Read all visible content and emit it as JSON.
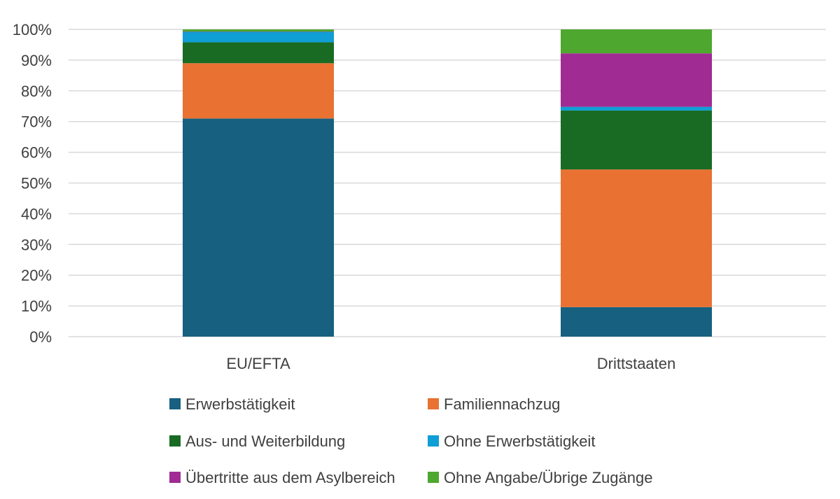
{
  "chart_data": {
    "type": "bar",
    "stacked": true,
    "title": "",
    "xlabel": "",
    "ylabel": "",
    "ylim": [
      0,
      100
    ],
    "y_ticks": [
      "0%",
      "10%",
      "20%",
      "30%",
      "40%",
      "50%",
      "60%",
      "70%",
      "80%",
      "90%",
      "100%"
    ],
    "grid": true,
    "legend_position": "bottom",
    "categories": [
      "EU/EFTA",
      "Drittstaaten"
    ],
    "series": [
      {
        "name": "Erwerbstätigkeit",
        "color": "#17607F",
        "values": [
          71,
          9.6
        ]
      },
      {
        "name": "Familiennachzug",
        "color": "#E97132",
        "values": [
          18,
          44.8
        ]
      },
      {
        "name": "Aus- und Weiterbildung",
        "color": "#196B24",
        "values": [
          6.8,
          19.2
        ]
      },
      {
        "name": "Ohne Erwerbstätigkeit",
        "color": "#0F9ED5",
        "values": [
          3.4,
          1.2
        ]
      },
      {
        "name": "Übertritte aus dem Asylbereich",
        "color": "#A02B93",
        "values": [
          0.1,
          17.4
        ]
      },
      {
        "name": "Ohne Angabe/Übrige Zugänge",
        "color": "#4EA72E",
        "values": [
          0.7,
          7.8
        ]
      }
    ]
  }
}
